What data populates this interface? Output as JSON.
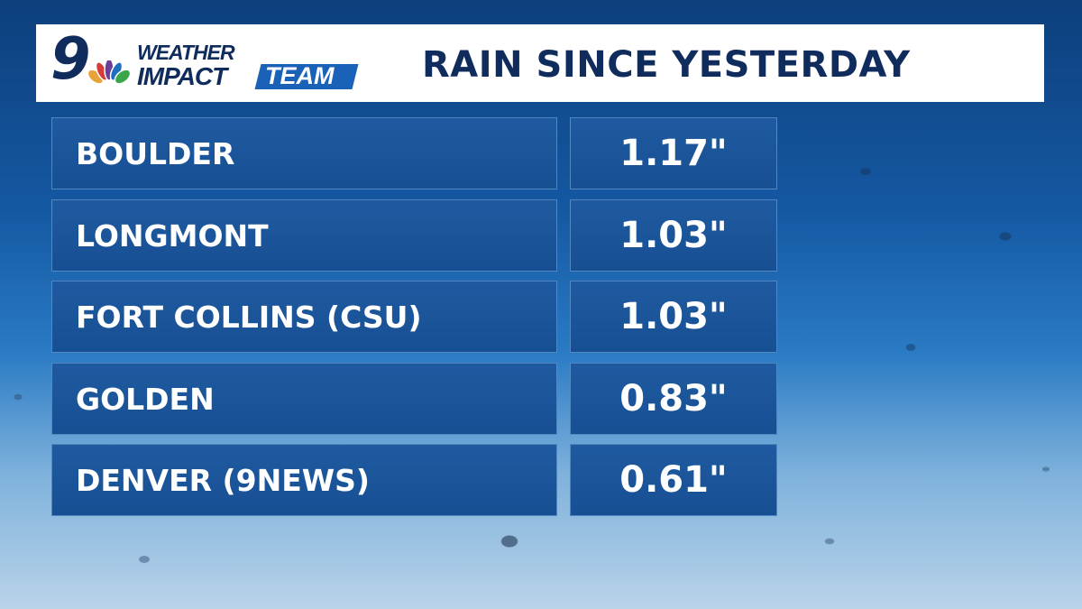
{
  "header": {
    "logo_number": "9",
    "logo_line1": "WEATHER",
    "logo_line2": "IMPACT",
    "logo_badge": "TEAM",
    "title": "RAIN SINCE YESTERDAY"
  },
  "table": {
    "rows": [
      [
        "BOULDER",
        "1.17\""
      ],
      [
        "LONGMONT",
        "1.03\""
      ],
      [
        "FORT COLLINS (CSU)",
        "1.03\""
      ],
      [
        "GOLDEN",
        "0.83\""
      ],
      [
        "DENVER (9NEWS)",
        "0.61\""
      ]
    ]
  }
}
